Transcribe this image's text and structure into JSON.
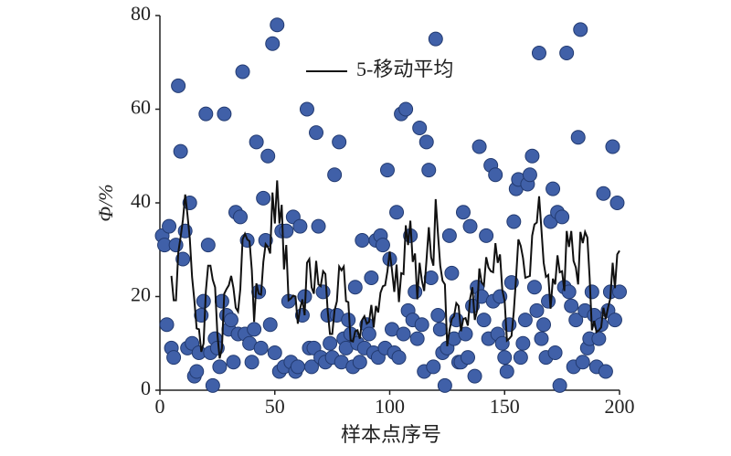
{
  "chart_data": {
    "type": "scatter",
    "x_label": "样本点序号",
    "y_label": "Φ/%",
    "xlim": [
      0,
      200
    ],
    "xticks": [
      0,
      50,
      100,
      150,
      200
    ],
    "ylim": [
      0,
      80
    ],
    "yticks": [
      0,
      20,
      40,
      60,
      80
    ],
    "grid": false,
    "color": "#4060a8",
    "moving_average": {
      "name": "5-移动平均",
      "period": 5,
      "color": "#111111"
    },
    "legend": "top",
    "x": [
      1,
      2,
      3,
      4,
      5,
      6,
      7,
      8,
      9,
      10,
      11,
      12,
      13,
      14,
      15,
      16,
      17,
      18,
      19,
      20,
      21,
      22,
      23,
      24,
      25,
      26,
      27,
      28,
      29,
      30,
      31,
      32,
      33,
      34,
      35,
      36,
      37,
      38,
      39,
      40,
      41,
      42,
      43,
      44,
      45,
      46,
      47,
      48,
      49,
      50,
      51,
      52,
      53,
      54,
      55,
      56,
      57,
      58,
      59,
      60,
      61,
      62,
      63,
      64,
      65,
      66,
      67,
      68,
      69,
      70,
      71,
      72,
      73,
      74,
      75,
      76,
      77,
      78,
      79,
      80,
      81,
      82,
      83,
      84,
      85,
      86,
      87,
      88,
      89,
      90,
      91,
      92,
      93,
      94,
      95,
      96,
      97,
      98,
      99,
      100,
      101,
      102,
      103,
      104,
      105,
      106,
      107,
      108,
      109,
      110,
      111,
      112,
      113,
      114,
      115,
      116,
      117,
      118,
      119,
      120,
      121,
      122,
      123,
      124,
      125,
      126,
      127,
      128,
      129,
      130,
      131,
      132,
      133,
      134,
      135,
      136,
      137,
      138,
      139,
      140,
      141,
      142,
      143,
      144,
      145,
      146,
      147,
      148,
      149,
      150,
      151,
      152,
      153,
      154,
      155,
      156,
      157,
      158,
      159,
      160,
      161,
      162,
      163,
      164,
      165,
      166,
      167,
      168,
      169,
      170,
      171,
      172,
      173,
      174,
      175,
      176,
      177,
      178,
      179,
      180,
      181,
      182,
      183,
      184,
      185,
      186,
      187,
      188,
      189,
      190,
      191,
      192,
      193,
      194,
      195,
      196,
      197,
      198,
      199,
      200
    ],
    "values": [
      33,
      31,
      14,
      35,
      9,
      7,
      31,
      65,
      51,
      28,
      34,
      9,
      40,
      10,
      3,
      4,
      8,
      16,
      19,
      59,
      31,
      8,
      1,
      11,
      9,
      5,
      19,
      59,
      16,
      13,
      15,
      6,
      38,
      12,
      37,
      68,
      12,
      32,
      10,
      6,
      13,
      53,
      21,
      9,
      41,
      32,
      50,
      14,
      74,
      8,
      78,
      4,
      34,
      5,
      34,
      19,
      6,
      37,
      4,
      5,
      35,
      16,
      20,
      60,
      9,
      5,
      9,
      55,
      35,
      7,
      21,
      6,
      16,
      10,
      7,
      46,
      16,
      53,
      6,
      11,
      9,
      15,
      12,
      5,
      22,
      10,
      6,
      32,
      9,
      14,
      12,
      24,
      8,
      32,
      7,
      33,
      31,
      9,
      47,
      28,
      13,
      8,
      38,
      7,
      59,
      12,
      60,
      17,
      33,
      15,
      21,
      11,
      56,
      14,
      4,
      53,
      47,
      24,
      5,
      75,
      16,
      13,
      8,
      1,
      9,
      33,
      25,
      11,
      15,
      6,
      6,
      38,
      12,
      7,
      35,
      18,
      3,
      22,
      52,
      20,
      15,
      33,
      11,
      48,
      19,
      46,
      12,
      20,
      10,
      7,
      4,
      14,
      23,
      36,
      43,
      45,
      7,
      10,
      15,
      44,
      46,
      50,
      22,
      17,
      72,
      11,
      14,
      7,
      19,
      36,
      43,
      8,
      38,
      1,
      37,
      22,
      72,
      21,
      18,
      5,
      15,
      54,
      77,
      6,
      17,
      9,
      11,
      21,
      16,
      5,
      11,
      14,
      42,
      4,
      17,
      21,
      52,
      15,
      40,
      21
    ]
  }
}
